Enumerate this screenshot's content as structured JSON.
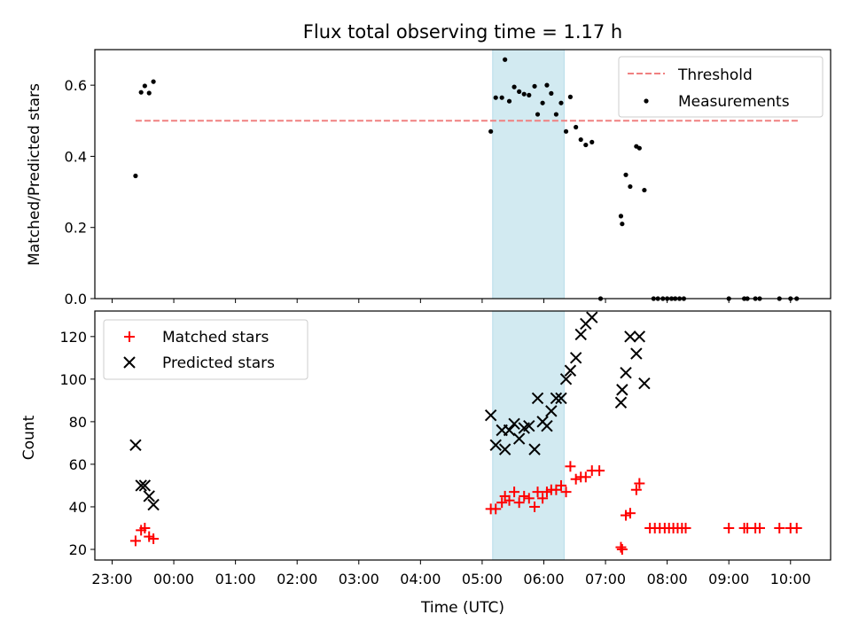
{
  "figure_title": "Flux total observing time = 1.17 h",
  "x_axis": {
    "label": "Time (UTC)",
    "tick_labels": [
      "23:00",
      "00:00",
      "01:00",
      "02:00",
      "03:00",
      "04:00",
      "05:00",
      "06:00",
      "07:00",
      "08:00",
      "09:00",
      "10:00"
    ],
    "tick_hours": [
      23,
      24,
      25,
      26,
      27,
      28,
      29,
      30,
      31,
      32,
      33,
      34
    ],
    "range_hours": [
      22.72,
      34.65
    ],
    "note": "hours since 00:00 of the first day; 24 = 00:00 next day"
  },
  "colors": {
    "threshold": "#f08080",
    "measurement": "#000000",
    "matched": "#ff0000",
    "predicted": "#000000",
    "highlight": "#add8e6"
  },
  "chart_data": [
    {
      "type": "scatter",
      "panel": "top",
      "ylabel": "Matched/Predicted stars",
      "ylim": [
        0,
        0.7
      ],
      "yticks": [
        0.0,
        0.2,
        0.4,
        0.6
      ],
      "ytick_labels": [
        "0.0",
        "0.2",
        "0.4",
        "0.6"
      ],
      "highlight_band": [
        29.17,
        30.33
      ],
      "legend": {
        "location": "top-right",
        "entries": [
          "Threshold",
          "Measurements"
        ]
      },
      "threshold": {
        "name": "Threshold",
        "y": 0.5,
        "x_range": [
          23.38,
          34.15
        ],
        "style": "dashed"
      },
      "series": [
        {
          "name": "Measurements",
          "x": [
            23.38,
            23.47,
            23.53,
            23.6,
            23.67,
            29.14,
            29.22,
            29.32,
            29.37,
            29.44,
            29.52,
            29.6,
            29.68,
            29.76,
            29.85,
            29.9,
            29.98,
            30.05,
            30.12,
            30.2,
            30.28,
            30.36,
            30.43,
            30.52,
            30.6,
            30.68,
            30.78,
            30.92,
            31.25,
            31.27,
            31.33,
            31.4,
            31.5,
            31.55,
            31.63,
            31.78,
            31.85,
            31.93,
            32.0,
            32.07,
            32.13,
            32.2,
            32.27,
            33.0,
            33.25,
            33.3,
            33.43,
            33.5,
            33.82,
            34.0,
            34.1
          ],
          "y": [
            0.345,
            0.58,
            0.598,
            0.578,
            0.61,
            0.47,
            0.565,
            0.565,
            0.672,
            0.555,
            0.595,
            0.582,
            0.575,
            0.572,
            0.597,
            0.518,
            0.55,
            0.6,
            0.577,
            0.518,
            0.55,
            0.47,
            0.567,
            0.482,
            0.447,
            0.432,
            0.44,
            0.0,
            0.232,
            0.21,
            0.348,
            0.315,
            0.428,
            0.423,
            0.305,
            0.0,
            0.0,
            0.0,
            0.0,
            0.0,
            0.0,
            0.0,
            0.0,
            0.0,
            0.0,
            0.0,
            0.0,
            0.0,
            0.0,
            0.0,
            0.0
          ]
        }
      ]
    },
    {
      "type": "scatter",
      "panel": "bottom",
      "ylabel": "Count",
      "ylim": [
        15,
        132
      ],
      "yticks": [
        20,
        40,
        60,
        80,
        100,
        120
      ],
      "ytick_labels": [
        "20",
        "40",
        "60",
        "80",
        "100",
        "120"
      ],
      "highlight_band": [
        29.17,
        30.33
      ],
      "legend": {
        "location": "top-left",
        "entries": [
          "Matched stars",
          "Predicted stars"
        ]
      },
      "series": [
        {
          "name": "Matched stars",
          "marker": "plus",
          "x": [
            23.38,
            23.47,
            23.53,
            23.6,
            23.67,
            29.14,
            29.22,
            29.32,
            29.37,
            29.44,
            29.52,
            29.6,
            29.68,
            29.76,
            29.85,
            29.9,
            29.98,
            30.05,
            30.12,
            30.2,
            30.28,
            30.36,
            30.43,
            30.52,
            30.6,
            30.68,
            30.78,
            30.9,
            31.25,
            31.27,
            31.33,
            31.4,
            31.5,
            31.55,
            31.72,
            31.8,
            31.88,
            31.96,
            32.03,
            32.1,
            32.17,
            32.24,
            32.3,
            33.0,
            33.25,
            33.3,
            33.43,
            33.5,
            33.82,
            34.0,
            34.1
          ],
          "y": [
            24,
            29,
            30,
            26,
            25,
            39,
            39,
            42,
            45,
            43,
            47,
            42,
            45,
            44,
            40,
            47,
            44,
            47,
            48,
            48,
            50,
            47,
            59,
            53,
            54,
            54,
            57,
            57,
            21,
            20,
            36,
            37,
            48,
            51,
            30,
            30,
            30,
            30,
            30,
            30,
            30,
            30,
            30,
            30,
            30,
            30,
            30,
            30,
            30,
            30,
            30
          ]
        },
        {
          "name": "Predicted stars",
          "marker": "x",
          "x": [
            23.38,
            23.47,
            23.53,
            23.6,
            23.67,
            29.14,
            29.22,
            29.32,
            29.37,
            29.44,
            29.52,
            29.6,
            29.68,
            29.76,
            29.85,
            29.9,
            29.98,
            30.05,
            30.12,
            30.2,
            30.28,
            30.36,
            30.43,
            30.52,
            30.6,
            30.68,
            30.78,
            31.25,
            31.27,
            31.33,
            31.4,
            31.5,
            31.55,
            31.63
          ],
          "y": [
            69,
            50,
            50,
            45,
            41,
            83,
            69,
            76,
            67,
            76,
            79,
            72,
            77,
            78,
            67,
            91,
            80,
            78,
            85,
            91,
            91,
            100,
            104,
            110,
            121,
            126,
            129,
            89,
            95,
            103,
            120,
            112,
            120,
            98
          ]
        }
      ]
    }
  ]
}
